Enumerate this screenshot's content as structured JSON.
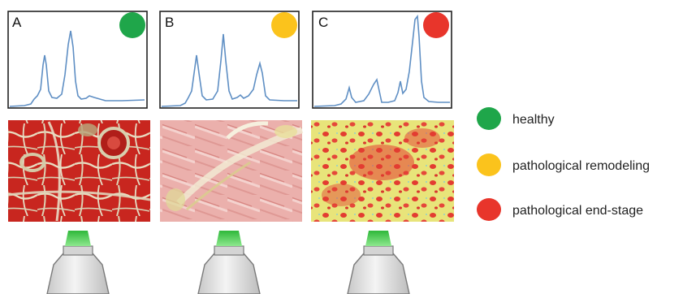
{
  "panels": [
    {
      "label": "A",
      "status": "healthy",
      "status_color": "#1fa64a"
    },
    {
      "label": "B",
      "status": "pathological remodeling",
      "status_color": "#fbc31c"
    },
    {
      "label": "C",
      "status": "pathological end-stage",
      "status_color": "#e8352b"
    }
  ],
  "legend": [
    {
      "label": "healthy",
      "color": "#1fa64a"
    },
    {
      "label": "pathological remodeling",
      "color": "#fbc31c"
    },
    {
      "label": "pathological end-stage",
      "color": "#e8352b"
    }
  ],
  "colors": {
    "trace": "#5f8fc4",
    "frame": "#222222",
    "probe_light": "#3fcb3f",
    "probe_body": "#dadada"
  },
  "icons": [
    "spectrum-trace",
    "tissue-histology-image",
    "fiber-optic-probe-icon"
  ]
}
